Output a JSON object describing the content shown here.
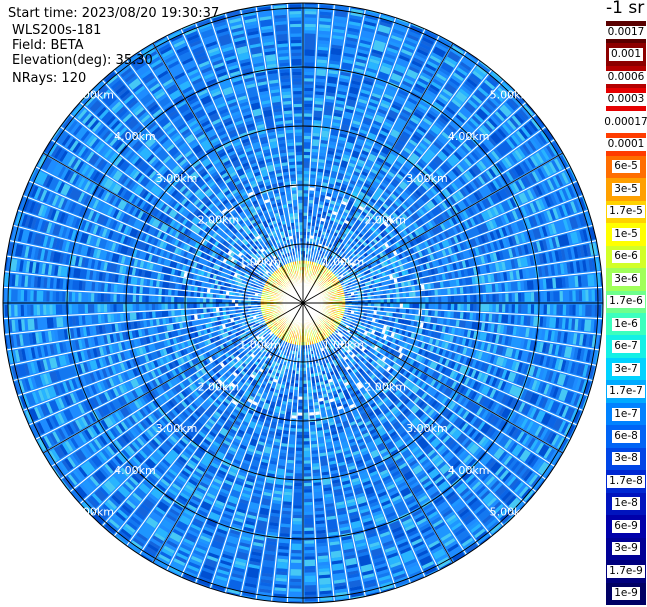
{
  "info": {
    "start_time": "Start time: 2023/08/20 19:30:37",
    "instrument": "WLS200s-181",
    "field": "Field: BETA",
    "elevation": "Elevation(deg): 35.30",
    "nrays": "NRays: 120"
  },
  "colorbar": {
    "title": "-1 sr",
    "entries": [
      {
        "label": "0.0017",
        "color": "#5a0000"
      },
      {
        "label": "0.001",
        "color": "#8c0000"
      },
      {
        "label": "0.0006",
        "color": "#b40000"
      },
      {
        "label": "0.0003",
        "color": "#e60000"
      },
      {
        "label": "0.00017",
        "color": "#ffffff"
      },
      {
        "label": "0.0001",
        "color": "#ff3c00"
      },
      {
        "label": "6e-5",
        "color": "#ff6e00"
      },
      {
        "label": "3e-5",
        "color": "#ffa000"
      },
      {
        "label": "1.7e-5",
        "color": "#ffd200"
      },
      {
        "label": "1e-5",
        "color": "#ffff00"
      },
      {
        "label": "6e-6",
        "color": "#d2ff28"
      },
      {
        "label": "3e-6",
        "color": "#a0ff5a"
      },
      {
        "label": "1.7e-6",
        "color": "#6eff8c"
      },
      {
        "label": "1e-6",
        "color": "#3cffbe"
      },
      {
        "label": "6e-7",
        "color": "#14f0e6"
      },
      {
        "label": "3e-7",
        "color": "#00d2ff"
      },
      {
        "label": "1.7e-7",
        "color": "#00aaff"
      },
      {
        "label": "1e-7",
        "color": "#0082ff"
      },
      {
        "label": "6e-8",
        "color": "#0064f5"
      },
      {
        "label": "3e-8",
        "color": "#0046e6"
      },
      {
        "label": "1.7e-8",
        "color": "#0028d2"
      },
      {
        "label": "1e-8",
        "color": "#0014be"
      },
      {
        "label": "6e-9",
        "color": "#0000aa"
      },
      {
        "label": "3e-9",
        "color": "#000096"
      },
      {
        "label": "1.7e-9",
        "color": "#00007d"
      },
      {
        "label": "1e-9",
        "color": "#000064"
      }
    ]
  },
  "ppi": {
    "range_labels": {
      "r1": "1.00km",
      "r2": "2.00km",
      "r3": "3.00km",
      "r4": "4.00km",
      "r5": "5.00km"
    }
  }
}
